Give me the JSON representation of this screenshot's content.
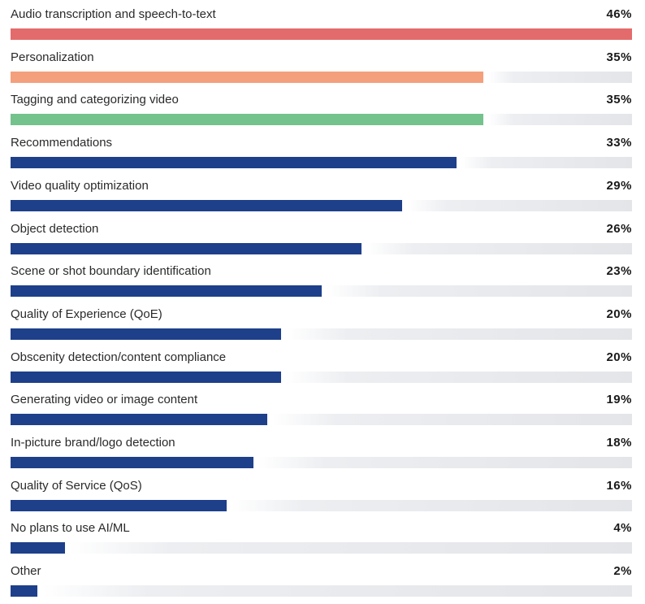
{
  "chart_data": {
    "type": "bar",
    "orientation": "horizontal",
    "title": "",
    "xlabel": "",
    "ylabel": "",
    "xlim": [
      0,
      46
    ],
    "value_suffix": "%",
    "grid": false,
    "legend": "none",
    "categories": [
      "Audio transcription and speech-to-text",
      "Personalization",
      "Tagging and categorizing video",
      "Recommendations",
      "Video quality optimization",
      "Object detection",
      "Scene or shot boundary identification",
      "Quality of Experience (QoE)",
      "Obscenity detection/content compliance",
      "Generating video or image content",
      "In-picture brand/logo detection",
      "Quality of Service (QoS)",
      "No plans to use AI/ML",
      "Other"
    ],
    "values": [
      46,
      35,
      35,
      33,
      29,
      26,
      23,
      20,
      20,
      19,
      18,
      16,
      4,
      2
    ],
    "value_labels": [
      "46%",
      "35%",
      "35%",
      "33%",
      "29%",
      "26%",
      "23%",
      "20%",
      "20%",
      "19%",
      "18%",
      "16%",
      "4%",
      "2%"
    ],
    "bar_colors": [
      "#e46b6c",
      "#f4a07c",
      "#74c28c",
      "#1e3f8a",
      "#1e3f8a",
      "#1e3f8a",
      "#1e3f8a",
      "#1e3f8a",
      "#1e3f8a",
      "#1e3f8a",
      "#1e3f8a",
      "#1e3f8a",
      "#1e3f8a",
      "#1e3f8a"
    ],
    "track_color": "#e3e5e9"
  }
}
